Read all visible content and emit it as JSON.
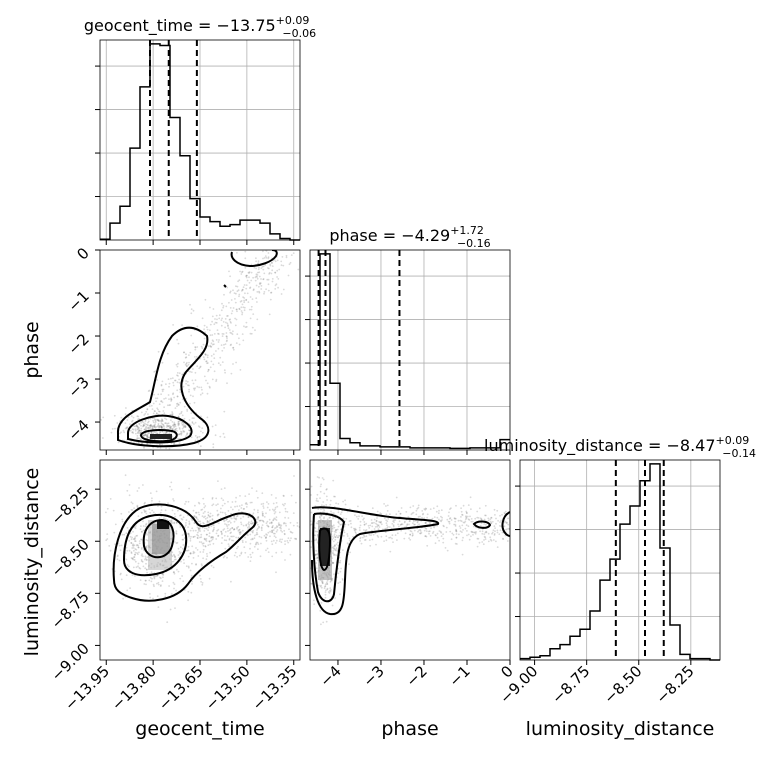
{
  "chart_data": {
    "type": "corner",
    "parameters": [
      "geocent_time",
      "phase",
      "luminosity_distance"
    ],
    "titles": [
      {
        "param": "geocent_time",
        "prefix": "geocent_time = −13.75",
        "plus": "+0.09",
        "minus": "−0.06"
      },
      {
        "param": "phase",
        "prefix": "phase = −4.29",
        "plus": "+1.72",
        "minus": "−0.16"
      },
      {
        "param": "luminosity_distance",
        "prefix": "luminosity_distance = −8.47",
        "plus": "+0.09",
        "minus": "−0.14"
      }
    ],
    "ranges": {
      "geocent_time": [
        -13.97,
        -13.33
      ],
      "phase": [
        -4.65,
        0.0
      ],
      "luminosity_distance": [
        -9.07,
        -8.11
      ]
    },
    "ticks": {
      "geocent_time": {
        "values": [
          -13.95,
          -13.8,
          -13.65,
          -13.5,
          -13.35
        ],
        "labels": [
          "−13.95",
          "−13.80",
          "−13.65",
          "−13.50",
          "−13.35"
        ]
      },
      "phase": {
        "values": [
          -4,
          -3,
          -2,
          -1,
          0
        ],
        "labels": [
          "−4",
          "−3",
          "−2",
          "−1",
          "0"
        ]
      },
      "luminosity_distance": {
        "values": [
          -9.0,
          -8.75,
          -8.5,
          -8.25
        ],
        "labels": [
          "−9.00",
          "−8.75",
          "−8.50",
          "−8.25"
        ]
      }
    },
    "quantiles": {
      "geocent_time": [
        -13.81,
        -13.75,
        -13.66
      ],
      "phase": [
        -4.45,
        -4.29,
        -2.57
      ],
      "luminosity_distance": [
        -8.61,
        -8.47,
        -8.38
      ]
    },
    "histograms": {
      "geocent_time": {
        "edges": [
          -13.97,
          -13.938,
          -13.906,
          -13.874,
          -13.842,
          -13.81,
          -13.778,
          -13.746,
          -13.714,
          -13.682,
          -13.65,
          -13.618,
          -13.586,
          -13.554,
          -13.522,
          -13.49,
          -13.458,
          -13.426,
          -13.394,
          -13.362,
          -13.33
        ],
        "counts": [
          0.5,
          11,
          22,
          60,
          100,
          128,
          127,
          80,
          55,
          27,
          15,
          12,
          9,
          10,
          13,
          13,
          11,
          4,
          1,
          0
        ]
      },
      "phase": {
        "edges": [
          -4.65,
          -4.4175,
          -4.185,
          -3.9525,
          -3.72,
          -3.4875,
          -3.255,
          -3.0225,
          -2.79,
          -2.5575,
          -2.325,
          -2.0925,
          -1.86,
          -1.6275,
          -1.395,
          -1.1625,
          -0.93,
          -0.6975,
          -0.465,
          -0.2325,
          0.0
        ],
        "counts": [
          5,
          188,
          64,
          11,
          7,
          4,
          4,
          3,
          3,
          3,
          2,
          2,
          2,
          2,
          1.5,
          1.5,
          2,
          2,
          2,
          10
        ]
      },
      "luminosity_distance": {
        "edges": [
          -9.07,
          -9.022,
          -8.974,
          -8.926,
          -8.878,
          -8.83,
          -8.782,
          -8.734,
          -8.686,
          -8.638,
          -8.59,
          -8.542,
          -8.494,
          -8.446,
          -8.398,
          -8.35,
          -8.302,
          -8.254,
          -8.206,
          -8.158,
          -8.11
        ],
        "counts": [
          1,
          2,
          3,
          8,
          11,
          17,
          22,
          35,
          57,
          72,
          97,
          110,
          128,
          140,
          80,
          25,
          4,
          1,
          1,
          0
        ]
      }
    },
    "points_density_centers": [
      {
        "pair": [
          "geocent_time",
          "phase"
        ],
        "center": [
          -13.76,
          -4.3
        ]
      },
      {
        "pair": [
          "geocent_time",
          "luminosity_distance"
        ],
        "center": [
          -13.76,
          -8.47
        ]
      },
      {
        "pair": [
          "phase",
          "luminosity_distance"
        ],
        "center": [
          -4.33,
          -8.47
        ]
      }
    ],
    "grid": true,
    "xlabel": [
      "geocent_time",
      "phase",
      "luminosity_distance"
    ],
    "ylabel": [
      "phase",
      "luminosity_distance"
    ]
  }
}
